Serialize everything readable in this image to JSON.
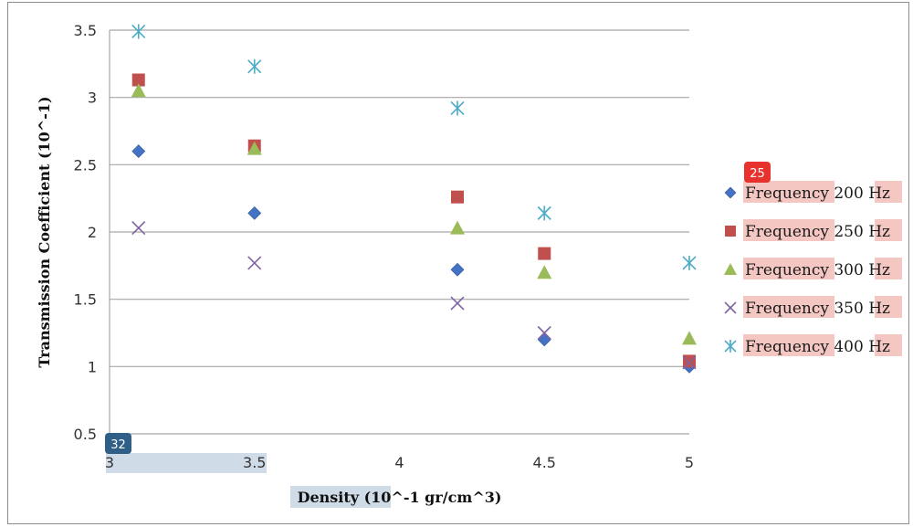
{
  "chart_data": {
    "type": "scatter",
    "title": "",
    "xlabel": "Density (10^-1 gr/cm^3)",
    "ylabel": "Transmission Coefficient (10^-1)",
    "xlim": [
      3,
      5
    ],
    "ylim": [
      0.5,
      3.5
    ],
    "x_ticks": [
      "3",
      "3.5",
      "4",
      "4.5",
      "5"
    ],
    "y_ticks": [
      "0.5",
      "1",
      "1.5",
      "2",
      "2.5",
      "3",
      "3.5"
    ],
    "grid": "horizontal",
    "legend_position": "right",
    "series": [
      {
        "name": "Frequency 200 Hz",
        "marker": "diamond",
        "color": "#4472c4",
        "x": [
          3.1,
          3.5,
          4.2,
          4.5,
          5.0
        ],
        "y": [
          2.6,
          2.14,
          1.72,
          1.2,
          1.0
        ]
      },
      {
        "name": "Frequency 250 Hz",
        "marker": "square",
        "color": "#c0504d",
        "x": [
          3.1,
          3.5,
          4.2,
          4.5,
          5.0
        ],
        "y": [
          3.13,
          2.64,
          2.26,
          1.84,
          1.04
        ]
      },
      {
        "name": "Frequency 300 Hz",
        "marker": "triangle",
        "color": "#9bbb59",
        "x": [
          3.1,
          3.5,
          4.2,
          4.5,
          5.0
        ],
        "y": [
          3.05,
          2.62,
          2.03,
          1.7,
          1.21
        ]
      },
      {
        "name": "Frequency 350 Hz",
        "marker": "x",
        "color": "#8064a2",
        "x": [
          3.1,
          3.5,
          4.2,
          4.5,
          5.0
        ],
        "y": [
          2.03,
          1.77,
          1.47,
          1.25,
          1.03
        ]
      },
      {
        "name": "Frequency 400 Hz",
        "marker": "asterisk",
        "color": "#4bacc6",
        "x": [
          3.1,
          3.5,
          4.2,
          4.5,
          5.0
        ],
        "y": [
          3.49,
          3.23,
          2.92,
          2.14,
          1.77
        ]
      }
    ]
  },
  "annotations": {
    "legend_badge": "25",
    "axis_badge": "32",
    "legend_highlight_color": "#f4c7c3",
    "axis_highlight_color": "#cfdbe6",
    "legend_badge_color": "#e8322e",
    "axis_badge_color": "#2f5f86"
  }
}
